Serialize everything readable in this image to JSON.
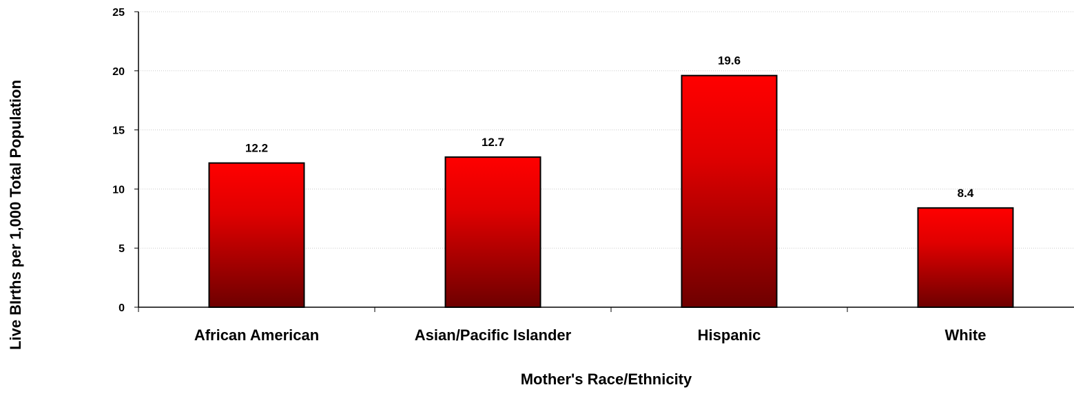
{
  "chart_data": {
    "type": "bar",
    "title": "",
    "xlabel": "Mother's Race/Ethnicity",
    "ylabel": "Live BIrths per 1,000 Total Population",
    "categories": [
      "African American",
      "Asian/Pacific Islander",
      "Hispanic",
      "White"
    ],
    "values": [
      12.2,
      12.7,
      19.6,
      8.4
    ],
    "value_labels": [
      "12.2",
      "12.7",
      "19.6",
      "8.4"
    ],
    "ylim": [
      0,
      25
    ],
    "yticks": [
      0,
      5,
      10,
      15,
      20,
      25
    ],
    "grid": true,
    "legend": "none",
    "colors": {
      "bar_top": "#ff0000",
      "bar_bottom": "#6e0000",
      "bar_border": "#000000",
      "grid": "#c8c8c8"
    }
  }
}
